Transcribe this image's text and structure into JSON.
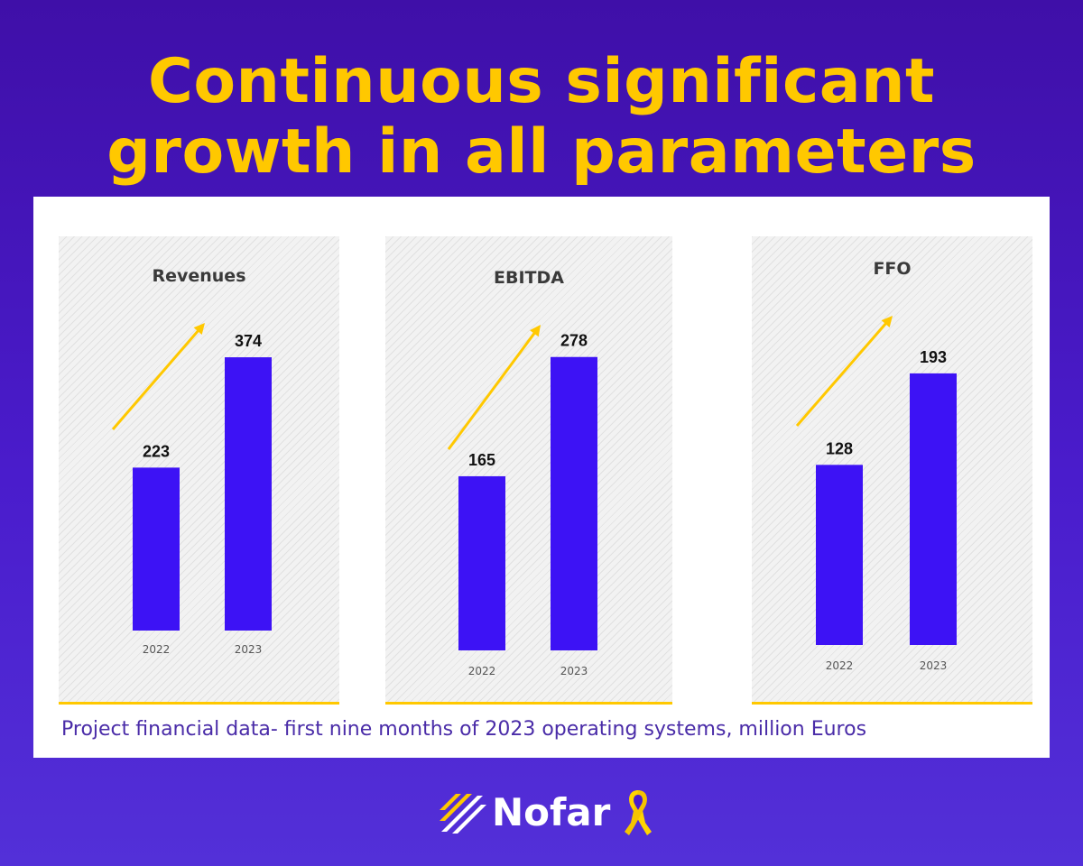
{
  "headline": {
    "line1": "Continuous significant",
    "line2": "growth in all parameters"
  },
  "caption": "Project financial data- first nine months of 2023 operating systems, million Euros",
  "logo": {
    "name": "Nofar",
    "icon": "slash-stripes-icon",
    "ribbon_icon": "yellow-ribbon-icon"
  },
  "colors": {
    "background": "#4a1ccc",
    "headline": "#ffc800",
    "bar": "#3d12f5",
    "arrow": "#ffc800",
    "accent_line": "#ffc800",
    "caption": "#4a2ca8"
  },
  "chart_data": [
    {
      "type": "bar",
      "title": "Revenues",
      "categories": [
        "2022",
        "2023"
      ],
      "values": [
        223,
        374
      ],
      "data_labels": [
        "223",
        "374"
      ],
      "annotation": "upward-trend-arrow"
    },
    {
      "type": "bar",
      "title": "EBITDA",
      "categories": [
        "2022",
        "2023"
      ],
      "values": [
        165,
        278
      ],
      "data_labels": [
        "165",
        "278"
      ],
      "annotation": "upward-trend-arrow"
    },
    {
      "type": "bar",
      "title": "FFO",
      "categories": [
        "2022",
        "2023"
      ],
      "values": [
        128,
        193
      ],
      "data_labels": [
        "128",
        "193"
      ],
      "annotation": "upward-trend-arrow"
    }
  ]
}
